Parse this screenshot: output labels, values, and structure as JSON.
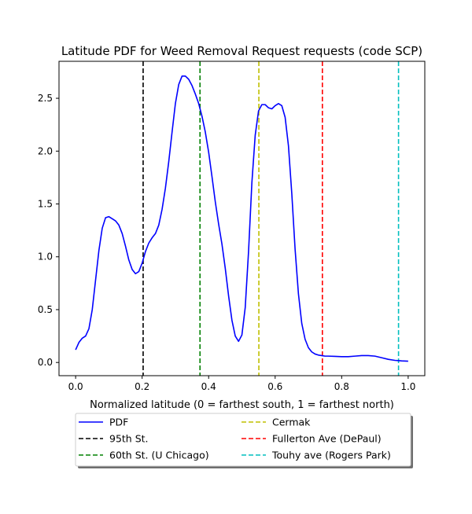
{
  "chart_data": {
    "type": "line",
    "title": "Latitude PDF for Weed Removal Request  requests (code SCP)",
    "xlabel": "Normalized latitude (0 = farthest south, 1 = farthest north)",
    "ylabel": "",
    "xlim": [
      -0.05,
      1.05
    ],
    "ylim": [
      -0.125,
      2.85
    ],
    "xticks": [
      "0.0",
      "0.2",
      "0.4",
      "0.6",
      "0.8",
      "1.0"
    ],
    "yticks": [
      "0.0",
      "0.5",
      "1.0",
      "1.5",
      "2.0",
      "2.5"
    ],
    "grid": false,
    "legend_placement": "below plot",
    "series": [
      {
        "name": "PDF",
        "color": "#0000ff",
        "style": "solid",
        "x": [
          0.0,
          0.01,
          0.02,
          0.03,
          0.04,
          0.05,
          0.06,
          0.07,
          0.08,
          0.09,
          0.1,
          0.11,
          0.12,
          0.13,
          0.14,
          0.15,
          0.16,
          0.17,
          0.18,
          0.19,
          0.2,
          0.21,
          0.22,
          0.23,
          0.24,
          0.25,
          0.26,
          0.27,
          0.28,
          0.29,
          0.3,
          0.31,
          0.32,
          0.33,
          0.34,
          0.35,
          0.36,
          0.37,
          0.38,
          0.39,
          0.4,
          0.41,
          0.42,
          0.43,
          0.44,
          0.45,
          0.46,
          0.47,
          0.48,
          0.49,
          0.5,
          0.51,
          0.52,
          0.53,
          0.54,
          0.55,
          0.56,
          0.57,
          0.58,
          0.59,
          0.6,
          0.61,
          0.62,
          0.63,
          0.64,
          0.65,
          0.66,
          0.67,
          0.68,
          0.69,
          0.7,
          0.71,
          0.72,
          0.73,
          0.74,
          0.75,
          0.76,
          0.78,
          0.8,
          0.82,
          0.84,
          0.86,
          0.88,
          0.9,
          0.92,
          0.94,
          0.96,
          0.98,
          1.0
        ],
        "y": [
          0.12,
          0.19,
          0.23,
          0.25,
          0.32,
          0.5,
          0.78,
          1.06,
          1.27,
          1.37,
          1.38,
          1.36,
          1.34,
          1.3,
          1.22,
          1.1,
          0.97,
          0.88,
          0.84,
          0.86,
          0.94,
          1.05,
          1.13,
          1.18,
          1.22,
          1.3,
          1.45,
          1.65,
          1.9,
          2.18,
          2.45,
          2.63,
          2.71,
          2.71,
          2.68,
          2.62,
          2.54,
          2.45,
          2.33,
          2.18,
          1.99,
          1.76,
          1.52,
          1.31,
          1.12,
          0.89,
          0.63,
          0.4,
          0.25,
          0.2,
          0.26,
          0.52,
          1.05,
          1.7,
          2.15,
          2.38,
          2.44,
          2.44,
          2.41,
          2.4,
          2.43,
          2.45,
          2.43,
          2.32,
          2.05,
          1.6,
          1.07,
          0.65,
          0.37,
          0.22,
          0.14,
          0.1,
          0.08,
          0.07,
          0.065,
          0.06,
          0.06,
          0.058,
          0.055,
          0.055,
          0.06,
          0.065,
          0.065,
          0.06,
          0.045,
          0.03,
          0.02,
          0.015,
          0.012
        ]
      }
    ],
    "vlines": [
      {
        "name": "95th St.",
        "x": 0.203,
        "color": "#000000"
      },
      {
        "name": "60th St. (U Chicago)",
        "x": 0.374,
        "color": "#008000"
      },
      {
        "name": "Cermak",
        "x": 0.551,
        "color": "#bfbf00"
      },
      {
        "name": "Fullerton Ave (DePaul)",
        "x": 0.742,
        "color": "#ff0000"
      },
      {
        "name": "Touhy ave (Rogers Park)",
        "x": 0.971,
        "color": "#00bfbf"
      }
    ]
  }
}
